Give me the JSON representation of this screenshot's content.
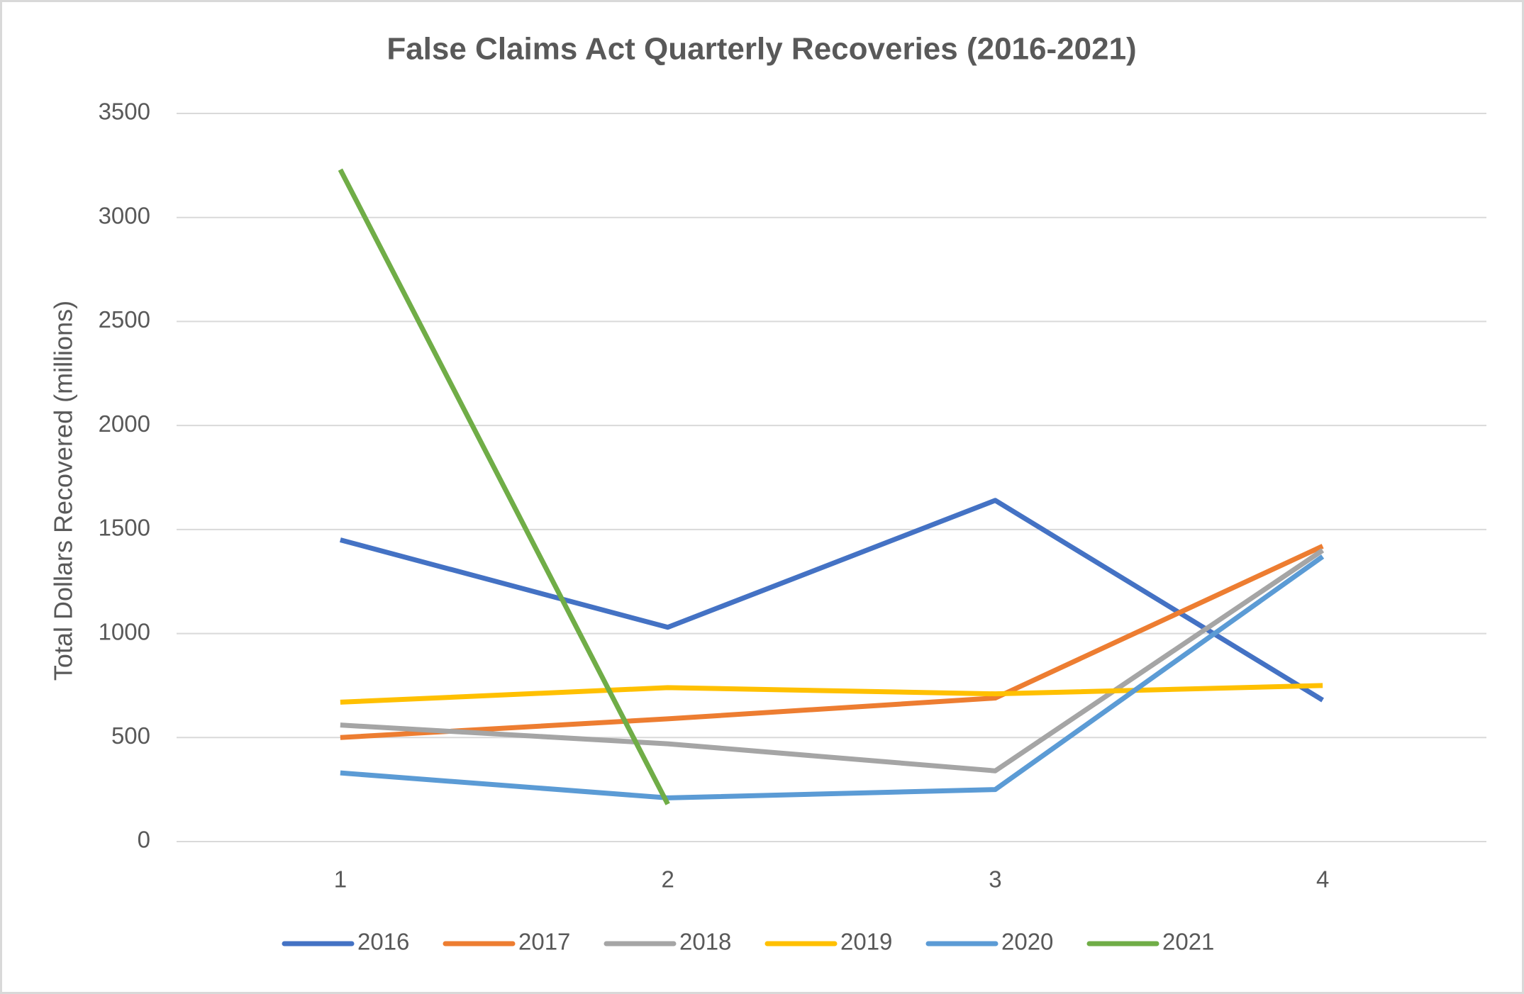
{
  "chart_data": {
    "type": "line",
    "title": "False Claims Act Quarterly Recoveries (2016-2021)",
    "y_label": "Total Dollars Recovered (millions)",
    "categories": [
      "1",
      "2",
      "3",
      "4"
    ],
    "series": [
      {
        "name": "2016",
        "color": "#4472c4",
        "values": [
          1450,
          1030,
          1640,
          680
        ]
      },
      {
        "name": "2017",
        "color": "#ed7d31",
        "values": [
          500,
          590,
          690,
          1420
        ]
      },
      {
        "name": "2018",
        "color": "#a5a5a5",
        "values": [
          560,
          470,
          340,
          1400
        ]
      },
      {
        "name": "2019",
        "color": "#ffc000",
        "values": [
          670,
          740,
          710,
          750
        ]
      },
      {
        "name": "2020",
        "color": "#5b9bd5",
        "values": [
          330,
          210,
          250,
          1370
        ]
      },
      {
        "name": "2021",
        "color": "#70ad47",
        "values": [
          3230,
          180,
          null,
          null
        ]
      }
    ],
    "ylim": [
      0,
      3500
    ],
    "yticks": [
      0,
      500,
      1000,
      1500,
      2000,
      2500,
      3000,
      3500
    ],
    "grid": true,
    "legend": "bottom"
  }
}
